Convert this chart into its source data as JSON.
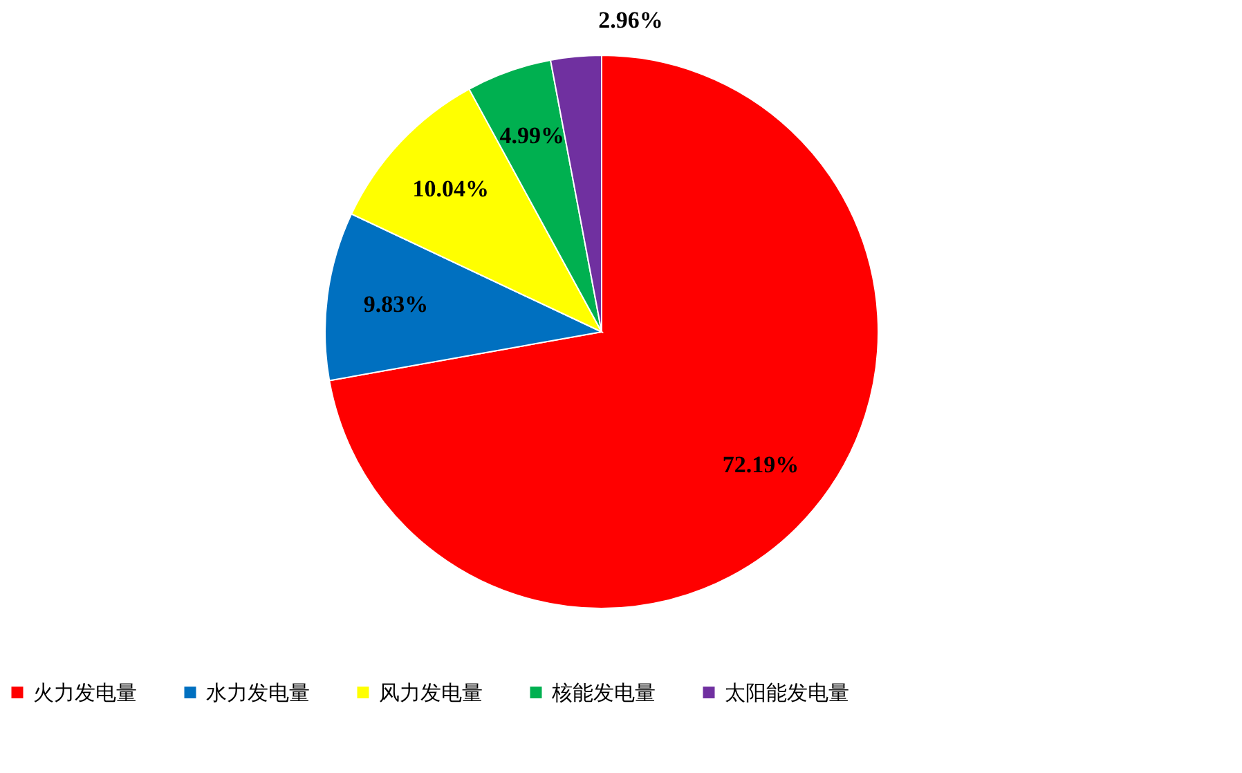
{
  "chart_data": {
    "type": "pie",
    "categories": [
      "火力发电量",
      "水力发电量",
      "风力发电量",
      "核能发电量",
      "太阳能发电量"
    ],
    "values": [
      72.19,
      9.83,
      10.04,
      4.99,
      2.96
    ],
    "value_labels": [
      "72.19%",
      "9.83%",
      "10.04%",
      "4.99%",
      "2.96%"
    ],
    "colors": [
      "#ff0000",
      "#0070c0",
      "#ffff00",
      "#00b050",
      "#7030a0"
    ],
    "legend": "bottom"
  }
}
